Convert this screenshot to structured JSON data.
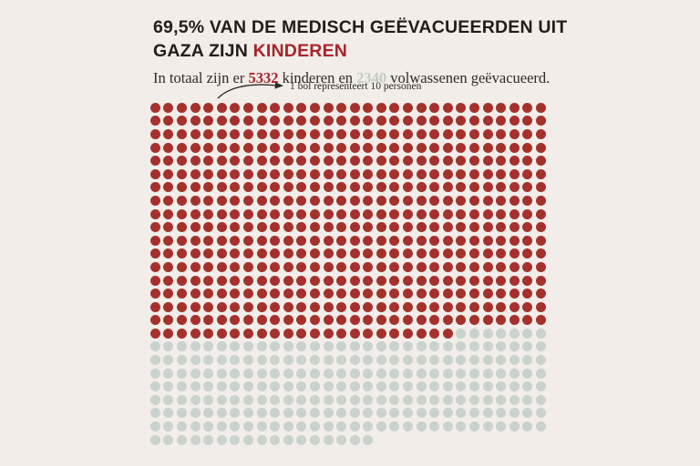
{
  "colors": {
    "background": "#F2EDE8",
    "title_text": "#201D1B",
    "body_text": "#2E2A26",
    "accent_red": "#A8242C",
    "adults_gray_text": "#C2CCC7"
  },
  "header": {
    "title_line1": "69,5% VAN DE MEDISCH GEËVACUEERDEN UIT",
    "title_line2_plain": "GAZA ZIJN ",
    "title_line2_accent": "KINDEREN"
  },
  "subtitle": {
    "text_before": "In totaal zijn er ",
    "children_count": "5332",
    "text_middle": " kinderen en ",
    "adults_count": "2340",
    "text_after": " volwassenen geëvacueerd."
  },
  "annotation": {
    "label": "1 bol representeert 10 personen"
  },
  "chart_data": {
    "type": "waffle",
    "title": "69,5% van de medisch geëvacueerden uit Gaza zijn kinderen",
    "subtitle": "In totaal zijn er 5332 kinderen en 2340 volwassenen geëvacueerd.",
    "annotation": "1 bol representeert 10 personen",
    "unit_per_dot": 10,
    "columns": 30,
    "total_people": 7672,
    "total_dots": 767,
    "percent_children": "69,5%",
    "series": [
      {
        "name": "kinderen",
        "people": 5332,
        "dots": 533,
        "color": "#A4312D"
      },
      {
        "name": "volwassenen",
        "people": 2340,
        "dots": 234,
        "color": "#C9D2CD"
      }
    ],
    "legend_position": "none",
    "grid": "off"
  }
}
